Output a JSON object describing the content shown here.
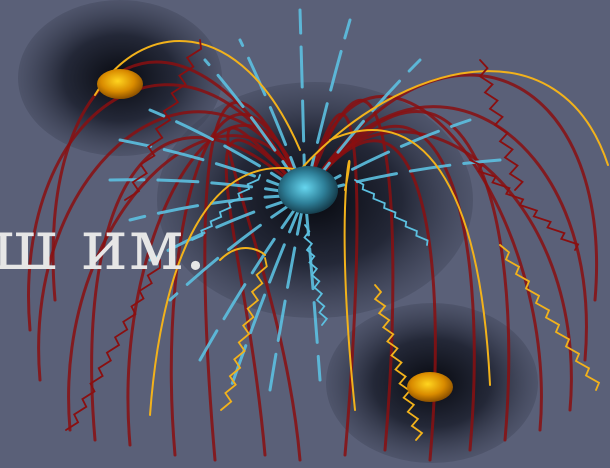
{
  "caption": {
    "text": "ш им."
  },
  "colors": {
    "background": "#5a6078",
    "halo": "#0a0d14",
    "core_center": "#5fd0ea",
    "core_edge": "#1f5566",
    "node_center": "#ffd11f",
    "node_edge": "#a35c00",
    "strand_red": "#8a0f10",
    "strand_blue": "#5cc0e0",
    "strand_gold": "#f2b21b"
  },
  "nodes": [
    {
      "name": "central-core",
      "kind": "core"
    },
    {
      "name": "upper-left-node",
      "kind": "node"
    },
    {
      "name": "lower-right-node",
      "kind": "node"
    }
  ]
}
